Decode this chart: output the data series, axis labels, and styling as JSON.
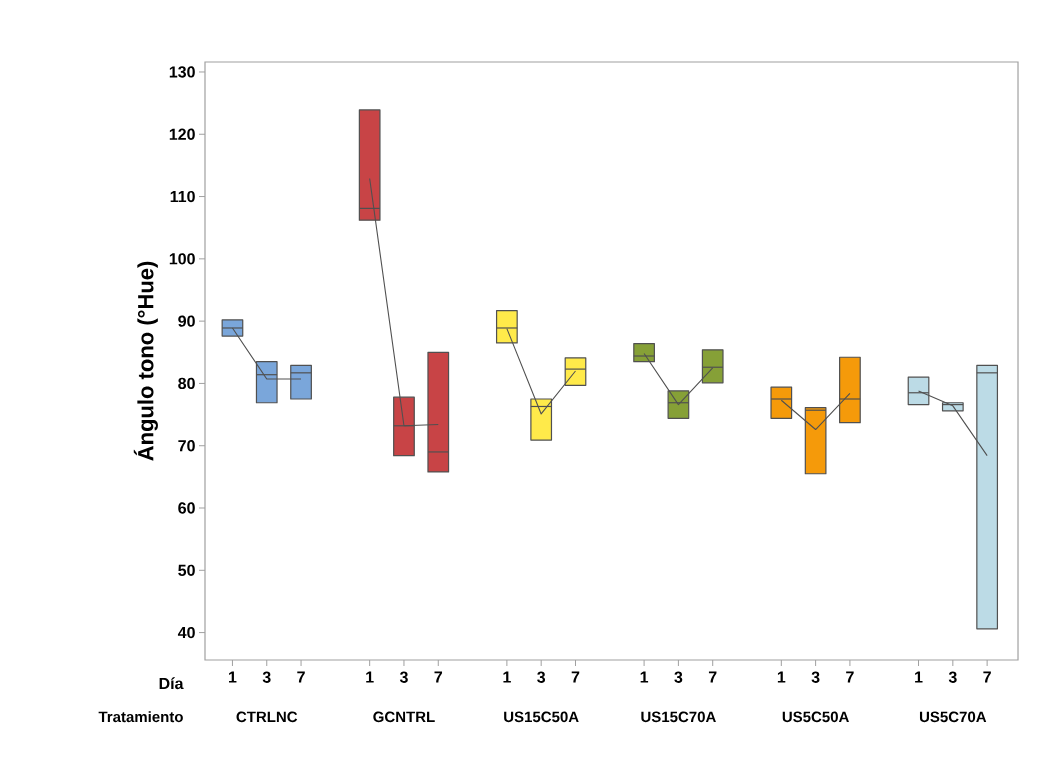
{
  "chart_data": {
    "type": "box",
    "ylabel": "Ángulo tono (°Hue)",
    "xlabel": "Tratamiento",
    "annotations": [
      "Día",
      "CTRLNC",
      "GCNTRL",
      "US15C50A",
      "US15C70A",
      "US5C50A",
      "US5C70A"
    ],
    "categories": [
      "1",
      "3",
      "7",
      null,
      "1",
      "3",
      "7",
      null,
      "1",
      "3",
      "7",
      null,
      "1",
      "3",
      "7",
      null,
      "1",
      "3",
      "7",
      null,
      "1",
      "3",
      "7"
    ],
    "ylim": [
      35.6,
      131.6
    ],
    "yticks": [
      40,
      50,
      60,
      70,
      80,
      90,
      100,
      110,
      120,
      130
    ],
    "series": [
      {
        "color": "#7aa6da",
        "boxes": [
          {
            "low": 87.6,
            "q1": 87.6,
            "median": 88.9,
            "q3": 90.2,
            "high": 90.2
          },
          {
            "low": 76.9,
            "q1": 76.9,
            "median": 81.4,
            "q3": 83.5,
            "high": 83.5
          },
          {
            "low": 77.5,
            "q1": 77.5,
            "median": 81.7,
            "q3": 82.9,
            "high": 82.9
          },
          null,
          null,
          null,
          null,
          null,
          null,
          null,
          null,
          null,
          null,
          null,
          null,
          null,
          null,
          null,
          null,
          null,
          null,
          null,
          null
        ]
      },
      {
        "color": "#c84446",
        "boxes": [
          null,
          null,
          null,
          null,
          {
            "low": 106.2,
            "q1": 106.2,
            "median": 108.1,
            "q3": 123.9,
            "high": 123.9
          },
          {
            "low": 68.4,
            "q1": 68.4,
            "median": 73.2,
            "q3": 77.8,
            "high": 77.8
          },
          {
            "low": 65.8,
            "q1": 65.8,
            "median": 69.0,
            "q3": 85.0,
            "high": 85.0
          },
          null,
          null,
          null,
          null,
          null,
          null,
          null,
          null,
          null,
          null,
          null,
          null,
          null,
          null,
          null,
          null
        ]
      },
      {
        "color": "#ffea4a",
        "boxes": [
          null,
          null,
          null,
          null,
          null,
          null,
          null,
          null,
          {
            "low": 86.5,
            "q1": 86.5,
            "median": 88.9,
            "q3": 91.7,
            "high": 91.7
          },
          {
            "low": 70.9,
            "q1": 70.9,
            "median": 76.3,
            "q3": 77.5,
            "high": 77.5
          },
          {
            "low": 79.7,
            "q1": 79.7,
            "median": 82.3,
            "q3": 84.1,
            "high": 84.1
          },
          null,
          null,
          null,
          null,
          null,
          null,
          null,
          null,
          null,
          null,
          null,
          null
        ]
      },
      {
        "color": "#86a037",
        "boxes": [
          null,
          null,
          null,
          null,
          null,
          null,
          null,
          null,
          null,
          null,
          null,
          null,
          {
            "low": 83.5,
            "q1": 83.5,
            "median": 84.4,
            "q3": 86.4,
            "high": 86.4
          },
          {
            "low": 74.4,
            "q1": 74.4,
            "median": 76.9,
            "q3": 78.8,
            "high": 78.8
          },
          {
            "low": 80.1,
            "q1": 80.1,
            "median": 82.6,
            "q3": 85.4,
            "high": 85.4
          },
          null,
          null,
          null,
          null,
          null,
          null,
          null,
          null
        ]
      },
      {
        "color": "#f59a0a",
        "boxes": [
          null,
          null,
          null,
          null,
          null,
          null,
          null,
          null,
          null,
          null,
          null,
          null,
          null,
          null,
          null,
          null,
          {
            "low": 74.4,
            "q1": 74.4,
            "median": 77.5,
            "q3": 79.4,
            "high": 79.4
          },
          {
            "low": 65.5,
            "q1": 65.5,
            "median": 75.7,
            "q3": 76.1,
            "high": 76.1
          },
          {
            "low": 73.7,
            "q1": 73.7,
            "median": 77.5,
            "q3": 84.2,
            "high": 84.2
          },
          null,
          null,
          null,
          null
        ]
      },
      {
        "color": "#bcdbe6",
        "boxes": [
          null,
          null,
          null,
          null,
          null,
          null,
          null,
          null,
          null,
          null,
          null,
          null,
          null,
          null,
          null,
          null,
          null,
          null,
          null,
          null,
          {
            "low": 76.6,
            "q1": 76.6,
            "median": 78.5,
            "q3": 81.0,
            "high": 81.0
          },
          {
            "low": 75.6,
            "q1": 75.6,
            "median": 76.6,
            "q3": 76.9,
            "high": 76.9
          },
          {
            "low": 40.6,
            "q1": 40.6,
            "median": 81.7,
            "q3": 82.9,
            "high": 82.9
          }
        ]
      },
      {
        "type": "line",
        "color": "#505050",
        "values": [
          88.9,
          80.7,
          80.7,
          null,
          null,
          null,
          null,
          null,
          null,
          null,
          null,
          null,
          null,
          null,
          null,
          null,
          null,
          null,
          null,
          null,
          null,
          null,
          null
        ]
      },
      {
        "type": "line",
        "color": "#505050",
        "values": [
          null,
          null,
          null,
          null,
          112.9,
          73.2,
          73.4,
          null,
          null,
          null,
          null,
          null,
          null,
          null,
          null,
          null,
          null,
          null,
          null,
          null,
          null,
          null,
          null
        ]
      },
      {
        "type": "line",
        "color": "#505050",
        "values": [
          null,
          null,
          null,
          null,
          null,
          null,
          null,
          null,
          88.8,
          75.1,
          82.0,
          null,
          null,
          null,
          null,
          null,
          null,
          null,
          null,
          null,
          null,
          null,
          null
        ]
      },
      {
        "type": "line",
        "color": "#505050",
        "values": [
          null,
          null,
          null,
          null,
          null,
          null,
          null,
          null,
          null,
          null,
          null,
          null,
          84.8,
          76.6,
          82.5,
          null,
          null,
          null,
          null,
          null,
          null,
          null,
          null
        ]
      },
      {
        "type": "line",
        "color": "#505050",
        "values": [
          null,
          null,
          null,
          null,
          null,
          null,
          null,
          null,
          null,
          null,
          null,
          null,
          null,
          null,
          null,
          null,
          77.3,
          72.6,
          78.4,
          null,
          null,
          null,
          null
        ]
      },
      {
        "type": "line",
        "color": "#505050",
        "values": [
          null,
          null,
          null,
          null,
          null,
          null,
          null,
          null,
          null,
          null,
          null,
          null,
          null,
          null,
          null,
          null,
          null,
          null,
          null,
          null,
          78.8,
          76.4,
          68.4
        ]
      }
    ]
  }
}
